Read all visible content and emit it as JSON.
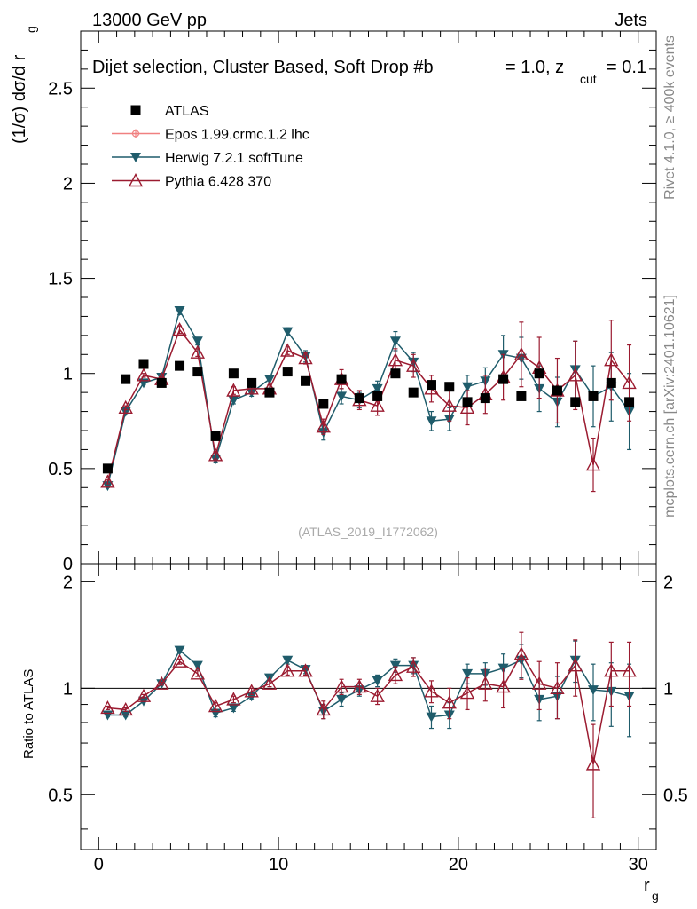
{
  "header": {
    "energy_label": "13000 GeV pp",
    "category_label": "Jets",
    "plot_title": "Dijet selection, Cluster Based, Soft Drop #b",
    "plot_title_beta": "= 1.0, z",
    "plot_title_cut_sub": "cut",
    "plot_title_tail": "= 0.1",
    "analysis_id": "(ATLAS_2019_I1772062)",
    "side_label_rivet": "Rivet 4.1.0, ≥ 400k events",
    "side_label_mcplots": "mcplots.cern.ch [arXiv:2401.10621]"
  },
  "chart_data": {
    "type": "scatter",
    "x": [
      0.5,
      1.5,
      2.5,
      3.5,
      4.5,
      5.5,
      6.5,
      7.5,
      8.5,
      9.5,
      10.5,
      11.5,
      12.5,
      13.5,
      14.5,
      15.5,
      16.5,
      17.5,
      18.5,
      19.5,
      20.5,
      21.5,
      22.5,
      23.5,
      24.5,
      25.5,
      26.5,
      27.5,
      28.5,
      29.5
    ],
    "xlabel": "r",
    "xlabel_sub": "g",
    "ylabel": "(1/σ) dσ/d r",
    "ylabel_sub": "g",
    "ratio_ylabel": "Ratio to ATLAS",
    "xlim": [
      -1,
      31
    ],
    "ylim": [
      0,
      2.8
    ],
    "ratio_ylim": [
      0.35,
      2.25
    ],
    "xticks": [
      "0",
      "10",
      "20",
      "30"
    ],
    "yticks": [
      "0",
      "0.5",
      "1",
      "1.5",
      "2",
      "2.5"
    ],
    "ratio_yticks": [
      "0.5",
      "1",
      "2"
    ],
    "legend_position": "top-left",
    "series": [
      {
        "name": "ATLAS",
        "marker": "square",
        "color": "#000000",
        "values": [
          0.5,
          0.97,
          1.05,
          0.95,
          1.04,
          1.01,
          0.67,
          1.0,
          0.95,
          0.9,
          1.01,
          0.96,
          0.84,
          0.97,
          0.87,
          0.88,
          1.0,
          0.9,
          0.94,
          0.93,
          0.85,
          0.87,
          0.97,
          0.88,
          1.0,
          0.91,
          0.85,
          0.88,
          0.95,
          0.85
        ]
      },
      {
        "name": "Epos 1.99.crmc.1.2 lhc",
        "marker": "open-circle-cross",
        "color": "#f08080",
        "values": []
      },
      {
        "name": "Herwig 7.2.1 softTune",
        "marker": "filled-triangle-down",
        "color": "#1f5c6b",
        "values": [
          0.41,
          0.8,
          0.95,
          0.98,
          1.33,
          1.17,
          0.55,
          0.86,
          0.9,
          0.97,
          1.22,
          1.09,
          0.69,
          0.88,
          0.86,
          0.92,
          1.17,
          1.06,
          0.75,
          0.76,
          0.93,
          0.96,
          1.1,
          1.08,
          0.92,
          0.85,
          1.02,
          0.88,
          0.93,
          0.8
        ],
        "errors": [
          0.01,
          0.01,
          0.01,
          0.01,
          0.02,
          0.02,
          0.02,
          0.02,
          0.02,
          0.02,
          0.02,
          0.03,
          0.04,
          0.04,
          0.04,
          0.04,
          0.05,
          0.05,
          0.05,
          0.06,
          0.06,
          0.07,
          0.1,
          0.11,
          0.12,
          0.13,
          0.15,
          0.16,
          0.18,
          0.2
        ],
        "ratios": [
          0.84,
          0.84,
          0.92,
          1.03,
          1.28,
          1.16,
          0.85,
          0.88,
          0.95,
          1.07,
          1.2,
          1.13,
          0.86,
          0.93,
          0.99,
          1.05,
          1.16,
          1.16,
          0.83,
          0.84,
          1.1,
          1.1,
          1.14,
          1.2,
          0.93,
          0.95,
          1.2,
          0.99,
          0.98,
          0.95
        ],
        "ratio_errors": [
          0.01,
          0.01,
          0.01,
          0.01,
          0.02,
          0.02,
          0.02,
          0.02,
          0.02,
          0.02,
          0.03,
          0.03,
          0.04,
          0.04,
          0.04,
          0.04,
          0.05,
          0.06,
          0.06,
          0.07,
          0.07,
          0.08,
          0.11,
          0.13,
          0.12,
          0.13,
          0.16,
          0.18,
          0.2,
          0.22
        ]
      },
      {
        "name": "Pythia 6.428 370",
        "marker": "open-triangle-up",
        "color": "#9b1b30",
        "values": [
          0.43,
          0.82,
          0.99,
          0.97,
          1.23,
          1.11,
          0.57,
          0.91,
          0.92,
          0.92,
          1.12,
          1.08,
          0.72,
          0.97,
          0.86,
          0.83,
          1.07,
          1.04,
          0.92,
          0.83,
          0.82,
          0.89,
          0.98,
          1.1,
          1.03,
          0.91,
          0.99,
          0.52,
          1.07,
          0.95
        ],
        "errors": [
          0.01,
          0.01,
          0.01,
          0.01,
          0.02,
          0.02,
          0.02,
          0.02,
          0.02,
          0.02,
          0.02,
          0.03,
          0.04,
          0.05,
          0.05,
          0.05,
          0.06,
          0.06,
          0.07,
          0.08,
          0.09,
          0.1,
          0.12,
          0.17,
          0.16,
          0.17,
          0.18,
          0.14,
          0.21,
          0.2
        ],
        "ratios": [
          0.88,
          0.87,
          0.95,
          1.03,
          1.19,
          1.1,
          0.89,
          0.93,
          0.98,
          1.03,
          1.12,
          1.12,
          0.87,
          1.01,
          1.01,
          0.95,
          1.09,
          1.15,
          0.98,
          0.91,
          0.97,
          1.03,
          1.01,
          1.25,
          1.03,
          1.0,
          1.16,
          0.61,
          1.12,
          1.12
        ],
        "ratio_errors": [
          0.01,
          0.01,
          0.01,
          0.01,
          0.02,
          0.02,
          0.02,
          0.02,
          0.02,
          0.02,
          0.03,
          0.03,
          0.05,
          0.05,
          0.05,
          0.05,
          0.06,
          0.07,
          0.07,
          0.09,
          0.1,
          0.11,
          0.13,
          0.19,
          0.16,
          0.18,
          0.21,
          0.18,
          0.23,
          0.23
        ]
      }
    ]
  }
}
